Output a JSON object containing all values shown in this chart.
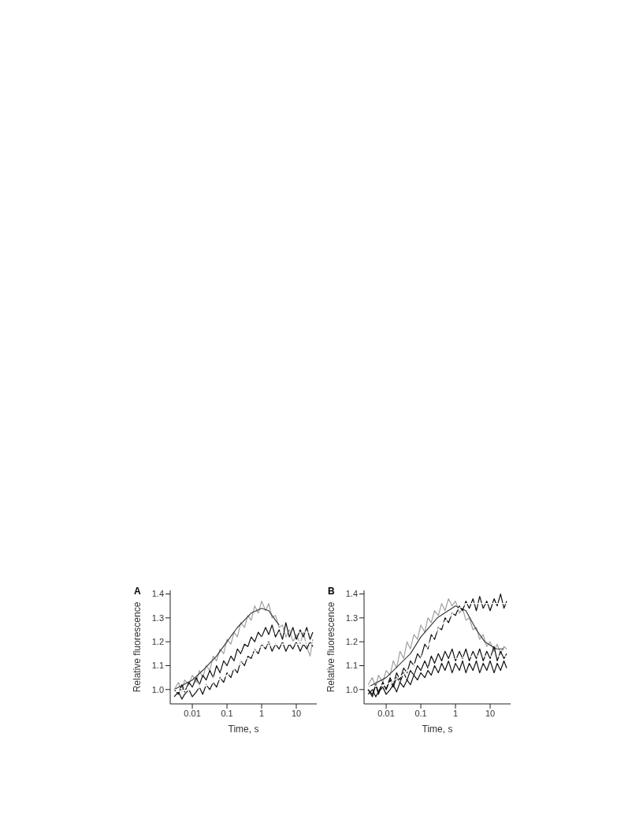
{
  "chart_data": [
    {
      "type": "line",
      "title": "A",
      "xlabel": "Time, s",
      "ylabel": "Relative fluorescence",
      "log": "x",
      "marker": "none",
      "xlim": [
        0.0023,
        39
      ],
      "ylim": [
        0.94,
        1.415
      ],
      "xticks": [
        0.01,
        0.1,
        1,
        10
      ],
      "yticks": [
        {
          "value": 1,
          "label": "1.0"
        },
        {
          "value": 1.1,
          "label": "1.1"
        },
        {
          "value": 1.2,
          "label": "1.2"
        },
        {
          "value": 1.3,
          "label": "1.3"
        },
        {
          "value": 1.4,
          "label": "1.4"
        }
      ],
      "x": [
        0.003,
        0.004,
        0.005,
        0.006,
        0.008,
        0.01,
        0.013,
        0.016,
        0.02,
        0.025,
        0.032,
        0.04,
        0.05,
        0.063,
        0.08,
        0.1,
        0.13,
        0.16,
        0.2,
        0.25,
        0.32,
        0.4,
        0.5,
        0.63,
        0.8,
        1,
        1.3,
        1.6,
        2,
        2.5,
        3.2,
        4,
        5,
        6.3,
        8,
        10,
        13,
        16,
        20,
        25,
        30
      ],
      "series": [
        {
          "color": "#a0a0a0",
          "line_style": "solid",
          "values": [
            1.0,
            1.03,
            0.99,
            1.04,
            1.02,
            1.06,
            1.03,
            1.08,
            1.05,
            1.1,
            1.08,
            1.14,
            1.12,
            1.17,
            1.15,
            1.21,
            1.19,
            1.24,
            1.22,
            1.28,
            1.26,
            1.31,
            1.29,
            1.35,
            1.32,
            1.37,
            1.33,
            1.36,
            1.3,
            1.31,
            1.26,
            1.27,
            1.22,
            1.25,
            1.2,
            1.23,
            1.19,
            1.24,
            1.18,
            1.14,
            1.21
          ]
        },
        {
          "color": "#3a3a3a",
          "line_style": "solid",
          "x": [
            0.003,
            0.01,
            0.02,
            0.05,
            0.1,
            0.2,
            0.5,
            1,
            1.6,
            2.5,
            3.2
          ],
          "values": [
            1.0,
            1.04,
            1.08,
            1.14,
            1.2,
            1.26,
            1.32,
            1.34,
            1.33,
            1.29,
            1.27
          ]
        },
        {
          "color": "#111111",
          "line_style": "solid",
          "values": [
            1.0,
            0.98,
            1.02,
            0.99,
            1.03,
            1.01,
            1.05,
            1.02,
            1.06,
            1.04,
            1.08,
            1.05,
            1.1,
            1.07,
            1.12,
            1.1,
            1.14,
            1.12,
            1.17,
            1.15,
            1.19,
            1.18,
            1.22,
            1.2,
            1.24,
            1.22,
            1.26,
            1.23,
            1.27,
            1.22,
            1.25,
            1.21,
            1.28,
            1.22,
            1.26,
            1.21,
            1.25,
            1.22,
            1.26,
            1.21,
            1.24
          ]
        },
        {
          "color": "#111111",
          "line_style": "solid",
          "values": [
            0.97,
            0.99,
            0.96,
            0.98,
            1.0,
            0.97,
            0.99,
            1.01,
            0.98,
            1.02,
            1.0,
            1.03,
            1.01,
            1.05,
            1.03,
            1.07,
            1.05,
            1.09,
            1.07,
            1.12,
            1.1,
            1.14,
            1.13,
            1.17,
            1.15,
            1.19,
            1.17,
            1.2,
            1.16,
            1.19,
            1.17,
            1.2,
            1.16,
            1.19,
            1.17,
            1.2,
            1.16,
            1.19,
            1.17,
            1.2,
            1.18
          ]
        },
        {
          "color": "#ffffff",
          "line_style": "dotted",
          "x": [
            0.003,
            0.01,
            0.03,
            0.1,
            0.3,
            1,
            3,
            10,
            30
          ],
          "values": [
            1.0,
            1.01,
            1.04,
            1.09,
            1.16,
            1.22,
            1.24,
            1.24,
            1.24
          ]
        },
        {
          "color": "#ffffff",
          "line_style": "solid",
          "x": [
            0.003,
            0.01,
            0.03,
            0.1,
            0.3,
            1,
            3,
            10,
            30
          ],
          "values": [
            0.99,
            1.0,
            1.02,
            1.06,
            1.13,
            1.19,
            1.2,
            1.2,
            1.2
          ]
        },
        {
          "color": "#ffffff",
          "line_style": "dashed",
          "x": [
            0.003,
            0.01,
            0.03,
            0.1,
            0.3,
            1,
            3,
            10,
            30
          ],
          "values": [
            0.99,
            1.0,
            1.02,
            1.06,
            1.12,
            1.18,
            1.19,
            1.19,
            1.19
          ]
        }
      ]
    },
    {
      "type": "line",
      "title": "B",
      "xlabel": "Time, s",
      "ylabel": "Relative fluorescence",
      "log": "x",
      "marker": "none",
      "xlim": [
        0.0023,
        39
      ],
      "ylim": [
        0.94,
        1.415
      ],
      "xticks": [
        0.01,
        0.1,
        1,
        10
      ],
      "yticks": [
        {
          "value": 1,
          "label": "1.0"
        },
        {
          "value": 1.1,
          "label": "1.1"
        },
        {
          "value": 1.2,
          "label": "1.2"
        },
        {
          "value": 1.3,
          "label": "1.3"
        },
        {
          "value": 1.4,
          "label": "1.4"
        }
      ],
      "x": [
        0.003,
        0.004,
        0.005,
        0.006,
        0.008,
        0.01,
        0.013,
        0.016,
        0.02,
        0.025,
        0.032,
        0.04,
        0.05,
        0.063,
        0.08,
        0.1,
        0.13,
        0.16,
        0.2,
        0.25,
        0.32,
        0.4,
        0.5,
        0.63,
        0.8,
        1,
        1.3,
        1.6,
        2,
        2.5,
        3.2,
        4,
        5,
        6.3,
        8,
        10,
        13,
        16,
        20,
        25,
        30
      ],
      "series": [
        {
          "color": "#a0a0a0",
          "line_style": "solid",
          "values": [
            1.02,
            1.05,
            1.01,
            1.06,
            1.03,
            1.08,
            1.06,
            1.12,
            1.09,
            1.16,
            1.13,
            1.2,
            1.17,
            1.23,
            1.21,
            1.27,
            1.24,
            1.3,
            1.28,
            1.33,
            1.31,
            1.36,
            1.33,
            1.38,
            1.35,
            1.37,
            1.32,
            1.34,
            1.29,
            1.3,
            1.25,
            1.26,
            1.21,
            1.23,
            1.18,
            1.2,
            1.16,
            1.19,
            1.15,
            1.18,
            1.17
          ]
        },
        {
          "color": "#3a3a3a",
          "line_style": "solid",
          "x": [
            0.003,
            0.01,
            0.05,
            0.1,
            0.3,
            1,
            2,
            4,
            7,
            15,
            25
          ],
          "values": [
            1.01,
            1.05,
            1.15,
            1.22,
            1.3,
            1.35,
            1.33,
            1.25,
            1.2,
            1.17,
            1.17
          ]
        },
        {
          "color": "#111111",
          "line_style": "solid",
          "values": [
            1.0,
            0.97,
            1.02,
            0.98,
            1.03,
            1.0,
            1.05,
            1.02,
            1.07,
            1.04,
            1.09,
            1.07,
            1.12,
            1.1,
            1.15,
            1.13,
            1.19,
            1.17,
            1.23,
            1.21,
            1.26,
            1.25,
            1.3,
            1.28,
            1.32,
            1.31,
            1.35,
            1.33,
            1.37,
            1.34,
            1.38,
            1.33,
            1.39,
            1.34,
            1.37,
            1.33,
            1.38,
            1.35,
            1.4,
            1.34,
            1.37
          ]
        },
        {
          "color": "#111111",
          "line_style": "solid",
          "values": [
            1.0,
            0.98,
            1.02,
            0.99,
            1.03,
            1.0,
            1.04,
            1.01,
            1.05,
            1.03,
            1.07,
            1.04,
            1.08,
            1.06,
            1.1,
            1.08,
            1.12,
            1.09,
            1.14,
            1.11,
            1.15,
            1.12,
            1.16,
            1.13,
            1.17,
            1.12,
            1.16,
            1.13,
            1.17,
            1.12,
            1.16,
            1.13,
            1.17,
            1.12,
            1.16,
            1.13,
            1.18,
            1.12,
            1.16,
            1.13,
            1.15
          ]
        },
        {
          "color": "#111111",
          "line_style": "solid",
          "values": [
            0.98,
            1.0,
            0.97,
            0.99,
            1.01,
            0.98,
            1.0,
            1.02,
            0.99,
            1.03,
            1.01,
            1.04,
            1.02,
            1.06,
            1.04,
            1.07,
            1.05,
            1.08,
            1.06,
            1.1,
            1.07,
            1.11,
            1.08,
            1.12,
            1.07,
            1.11,
            1.08,
            1.12,
            1.07,
            1.11,
            1.08,
            1.12,
            1.07,
            1.11,
            1.08,
            1.12,
            1.07,
            1.11,
            1.08,
            1.12,
            1.09
          ]
        },
        {
          "color": "#ffffff",
          "line_style": "solid",
          "x": [
            0.003,
            0.01,
            0.03,
            0.1,
            0.3,
            1,
            2,
            10,
            30
          ],
          "values": [
            1.01,
            1.02,
            1.06,
            1.13,
            1.25,
            1.33,
            1.36,
            1.36,
            1.36
          ]
        },
        {
          "color": "#ffffff",
          "line_style": "dashed",
          "x": [
            0.003,
            0.01,
            0.03,
            0.1,
            0.3,
            1,
            3,
            10,
            30
          ],
          "values": [
            1.01,
            1.02,
            1.04,
            1.08,
            1.11,
            1.13,
            1.14,
            1.14,
            1.14
          ]
        }
      ]
    }
  ]
}
